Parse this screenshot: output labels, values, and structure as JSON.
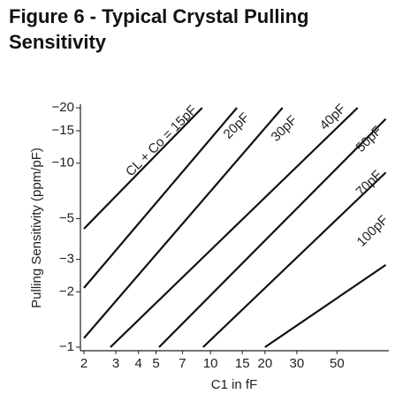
{
  "chart_data": {
    "type": "line",
    "title": "Figure 6 - Typical Crystal Pulling Sensitivity",
    "x_label": "C1 in fF",
    "y_label": "Pulling Sensitivity (ppm/pF)",
    "xscale": "log",
    "yscale": "log",
    "xlim": [
      2,
      100
    ],
    "ylim": [
      -1,
      -20
    ],
    "xticks": [
      2,
      3,
      4,
      5,
      7,
      10,
      15,
      20,
      30,
      50
    ],
    "yticks": [
      {
        "value": -1,
        "label": "−1"
      },
      {
        "value": -2,
        "label": "−2"
      },
      {
        "value": -3,
        "label": "−3"
      },
      {
        "value": -5,
        "label": "−5"
      },
      {
        "value": -10,
        "label": "−10"
      },
      {
        "value": -15,
        "label": "−15"
      },
      {
        "value": -20,
        "label": "−20"
      }
    ],
    "color": "#111111",
    "series": [
      {
        "name": "CL + Co = 15pF",
        "x": [
          2,
          9
        ],
        "values": [
          -4.4,
          -20
        ]
      },
      {
        "name": "20pF",
        "x": [
          2,
          14
        ],
        "values": [
          -2.1,
          -20
        ]
      },
      {
        "name": "30pF",
        "x": [
          2,
          25
        ],
        "values": [
          -1.12,
          -20
        ]
      },
      {
        "name": "40pF",
        "x": [
          2.8,
          65
        ],
        "values": [
          -1,
          -20
        ]
      },
      {
        "name": "50pF",
        "x": [
          5.2,
          93
        ],
        "values": [
          -1,
          -17.4
        ]
      },
      {
        "name": "70pF",
        "x": [
          9.1,
          93
        ],
        "values": [
          -1,
          -8.9
        ]
      },
      {
        "name": "100pF",
        "x": [
          20,
          93
        ],
        "values": [
          -1,
          -2.8
        ]
      }
    ]
  }
}
